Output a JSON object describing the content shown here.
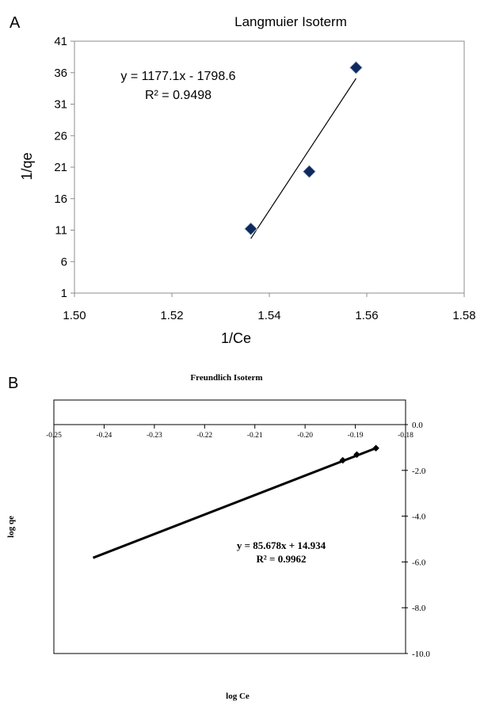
{
  "chart_data": [
    {
      "type": "scatter",
      "panel_label": "A",
      "title": "Langmuier Isoterm",
      "xlabel": "1/Ce",
      "ylabel": "1/qe",
      "xlim": [
        1.5,
        1.58
      ],
      "ylim": [
        1,
        41
      ],
      "xticks": [
        "1.50",
        "1.52",
        "1.54",
        "1.56",
        "1.58"
      ],
      "yticks": [
        "1",
        "6",
        "11",
        "16",
        "21",
        "26",
        "31",
        "36",
        "41"
      ],
      "points": [
        {
          "x": 1.5362,
          "y": 11.2
        },
        {
          "x": 1.5482,
          "y": 20.3
        },
        {
          "x": 1.5578,
          "y": 36.8
        }
      ],
      "trendline": {
        "slope": 1177.1,
        "intercept": -1798.6,
        "x_from": 1.5362,
        "x_to": 1.5578
      },
      "annotations": [
        "y = 1177.1x - 1798.6",
        "R² = 0.9498"
      ],
      "marker_color": "#0d2a5c",
      "grid": false
    },
    {
      "type": "line",
      "panel_label": "B",
      "title": "Freundlich Isoterm",
      "xlabel": "log Ce",
      "ylabel": "log qe",
      "xlim": [
        -0.25,
        -0.18
      ],
      "ylim": [
        -10.0,
        0.0
      ],
      "xticks": [
        "-0.25",
        "-0.24",
        "-0.23",
        "-0.22",
        "-0.21",
        "-0.20",
        "-0.19",
        "-0.18"
      ],
      "yticks": [
        "0.0",
        "-2.0",
        "-4.0",
        "-6.0",
        "-8.0",
        "-10.0"
      ],
      "line": [
        {
          "x": -0.2422,
          "y": -5.82
        },
        {
          "x": -0.1858,
          "y": -1.02
        }
      ],
      "points": [
        {
          "x": -0.1925,
          "y": -1.56
        },
        {
          "x": -0.1897,
          "y": -1.31
        },
        {
          "x": -0.1859,
          "y": -1.03
        }
      ],
      "annotations": [
        "y = 85.678x + 14.934",
        "R² = 0.9962"
      ],
      "line_color": "#000000",
      "grid": false
    }
  ]
}
